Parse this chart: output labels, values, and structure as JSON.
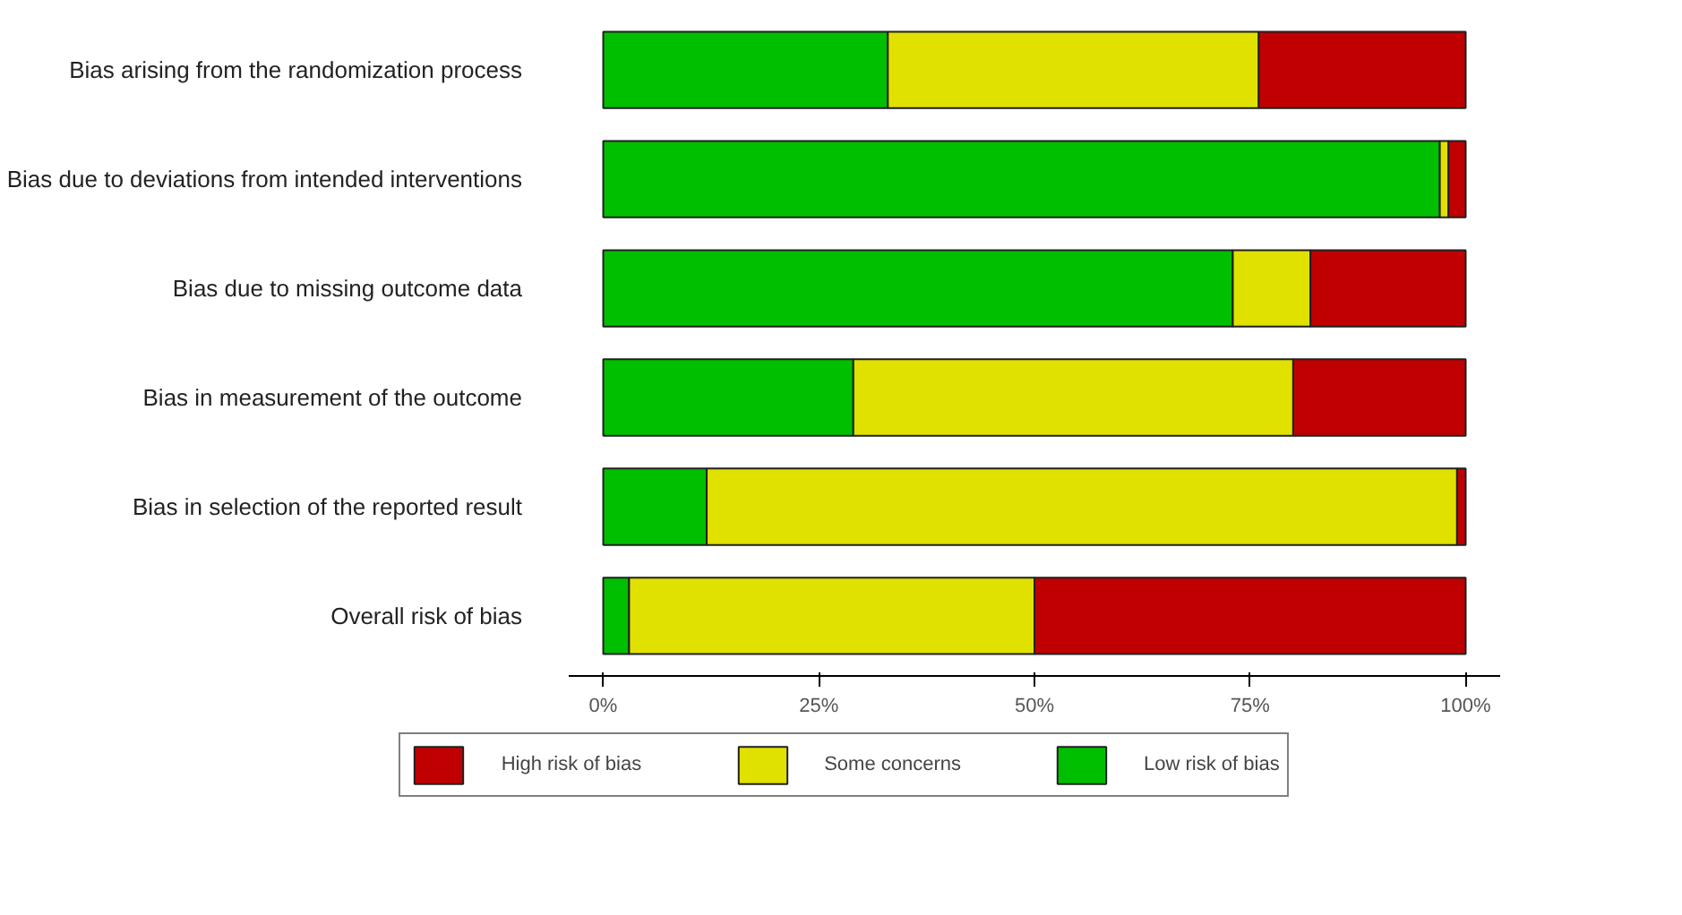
{
  "chart_data": {
    "type": "bar",
    "orientation": "horizontal",
    "stacked": true,
    "categories": [
      "Bias arising from the randomization process",
      "Bias due to deviations from intended interventions",
      "Bias due to missing outcome data",
      "Bias in measurement of the outcome",
      "Bias in selection of the reported result",
      "Overall risk of bias"
    ],
    "series": [
      {
        "name": "Low risk of bias",
        "color": "#00bf00",
        "values": [
          33,
          97,
          73,
          29,
          12,
          3
        ]
      },
      {
        "name": "Some concerns",
        "color": "#e1e100",
        "values": [
          43,
          1,
          9,
          51,
          87,
          47
        ]
      },
      {
        "name": "High risk of bias",
        "color": "#c00000",
        "values": [
          24,
          2,
          18,
          20,
          1,
          50
        ]
      }
    ],
    "xlim": [
      -4,
      104
    ],
    "xticks": [
      {
        "value": 0,
        "label": "0%"
      },
      {
        "value": 25,
        "label": "25%"
      },
      {
        "value": 50,
        "label": "50%"
      },
      {
        "value": 75,
        "label": "75%"
      },
      {
        "value": 100,
        "label": "100%"
      }
    ],
    "grid": false,
    "legend": "bottom"
  }
}
